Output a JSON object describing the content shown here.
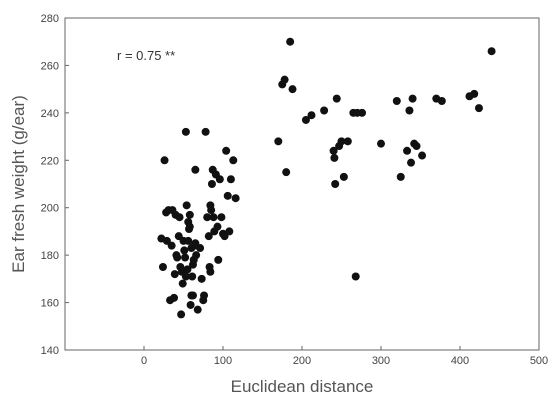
{
  "chart_data": {
    "type": "scatter",
    "title": "",
    "xlabel": "Euclidean distance",
    "ylabel": "Ear fresh weight (g/ear)",
    "xlim": [
      -100,
      500
    ],
    "ylim": [
      140,
      280
    ],
    "xticks": [
      0,
      100,
      200,
      300,
      400,
      500
    ],
    "yticks": [
      140,
      160,
      180,
      200,
      220,
      240,
      260,
      280
    ],
    "grid": false,
    "annotation": "r = 0.75 **",
    "marker_color": "#111111",
    "points": [
      [
        26,
        220
      ],
      [
        28,
        198
      ],
      [
        31,
        199
      ],
      [
        33,
        161
      ],
      [
        36,
        199
      ],
      [
        38,
        162
      ],
      [
        40,
        197
      ],
      [
        42,
        179
      ],
      [
        44,
        188
      ],
      [
        45,
        196
      ],
      [
        47,
        155
      ],
      [
        48,
        173
      ],
      [
        50,
        186
      ],
      [
        51,
        182
      ],
      [
        52,
        179
      ],
      [
        53,
        171
      ],
      [
        54,
        201
      ],
      [
        55,
        174
      ],
      [
        56,
        186
      ],
      [
        57,
        191
      ],
      [
        58,
        192
      ],
      [
        59,
        159
      ],
      [
        60,
        183
      ],
      [
        60,
        163
      ],
      [
        61,
        171
      ],
      [
        62,
        176
      ],
      [
        63,
        178
      ],
      [
        64,
        184
      ],
      [
        65,
        185
      ],
      [
        66,
        180
      ],
      [
        22,
        187
      ],
      [
        24,
        175
      ],
      [
        29,
        186
      ],
      [
        35,
        184
      ],
      [
        39,
        172
      ],
      [
        41,
        180
      ],
      [
        46,
        175
      ],
      [
        49,
        168
      ],
      [
        53,
        232
      ],
      [
        56,
        194
      ],
      [
        58,
        197
      ],
      [
        62,
        163
      ],
      [
        65,
        216
      ],
      [
        68,
        157
      ],
      [
        71,
        183
      ],
      [
        73,
        170
      ],
      [
        75,
        161
      ],
      [
        76,
        163
      ],
      [
        78,
        232
      ],
      [
        80,
        196
      ],
      [
        82,
        188
      ],
      [
        83,
        175
      ],
      [
        84,
        173
      ],
      [
        85,
        199
      ],
      [
        86,
        210
      ],
      [
        87,
        216
      ],
      [
        89,
        190
      ],
      [
        91,
        214
      ],
      [
        93,
        192
      ],
      [
        94,
        178
      ],
      [
        96,
        212
      ],
      [
        98,
        196
      ],
      [
        100,
        189
      ],
      [
        102,
        188
      ],
      [
        104,
        224
      ],
      [
        106,
        205
      ],
      [
        108,
        190
      ],
      [
        110,
        212
      ],
      [
        113,
        220
      ],
      [
        116,
        204
      ],
      [
        84,
        201
      ],
      [
        88,
        196
      ],
      [
        170,
        228
      ],
      [
        175,
        252
      ],
      [
        178,
        254
      ],
      [
        180,
        215
      ],
      [
        185,
        270
      ],
      [
        188,
        250
      ],
      [
        205,
        237
      ],
      [
        212,
        239
      ],
      [
        228,
        241
      ],
      [
        240,
        224
      ],
      [
        241,
        221
      ],
      [
        242,
        210
      ],
      [
        244,
        246
      ],
      [
        247,
        226
      ],
      [
        250,
        228
      ],
      [
        253,
        213
      ],
      [
        258,
        228
      ],
      [
        265,
        240
      ],
      [
        268,
        171
      ],
      [
        270,
        240
      ],
      [
        276,
        240
      ],
      [
        300,
        227
      ],
      [
        320,
        245
      ],
      [
        325,
        213
      ],
      [
        333,
        224
      ],
      [
        336,
        241
      ],
      [
        338,
        219
      ],
      [
        340,
        246
      ],
      [
        342,
        227
      ],
      [
        345,
        226
      ],
      [
        352,
        222
      ],
      [
        370,
        246
      ],
      [
        377,
        245
      ],
      [
        412,
        247
      ],
      [
        418,
        248
      ],
      [
        424,
        242
      ],
      [
        440,
        266
      ]
    ]
  }
}
